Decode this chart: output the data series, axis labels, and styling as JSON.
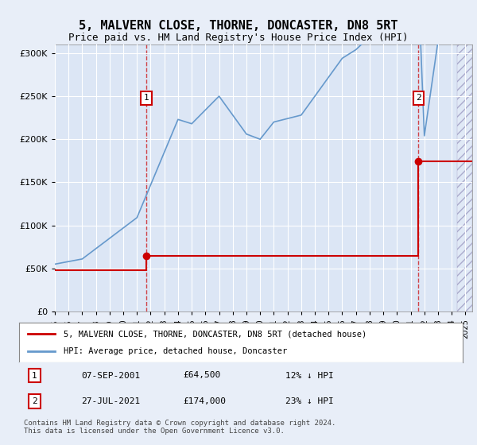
{
  "title": "5, MALVERN CLOSE, THORNE, DONCASTER, DN8 5RT",
  "subtitle": "Price paid vs. HM Land Registry's House Price Index (HPI)",
  "title_fontsize": 11,
  "subtitle_fontsize": 9,
  "bg_color": "#e8eef8",
  "plot_bg_color": "#dce6f5",
  "grid_color": "#ffffff",
  "hpi_color": "#6699cc",
  "price_color": "#cc0000",
  "marker_color": "#cc0000",
  "sale1_date_num": 2001.69,
  "sale1_price": 64500,
  "sale2_date_num": 2021.57,
  "sale2_price": 174000,
  "ylim_min": 0,
  "ylim_max": 310000,
  "yticks": [
    0,
    50000,
    100000,
    150000,
    200000,
    250000,
    300000
  ],
  "ytick_labels": [
    "£0",
    "£50K",
    "£100K",
    "£150K",
    "£200K",
    "£250K",
    "£300K"
  ],
  "xlim_min": 1995.0,
  "xlim_max": 2025.5,
  "xtick_years": [
    1995,
    1996,
    1997,
    1998,
    1999,
    2000,
    2001,
    2002,
    2003,
    2004,
    2005,
    2006,
    2007,
    2008,
    2009,
    2010,
    2011,
    2012,
    2013,
    2014,
    2015,
    2016,
    2017,
    2018,
    2019,
    2020,
    2021,
    2022,
    2023,
    2024,
    2025
  ],
  "legend_label_red": "5, MALVERN CLOSE, THORNE, DONCASTER, DN8 5RT (detached house)",
  "legend_label_blue": "HPI: Average price, detached house, Doncaster",
  "table_row1": [
    "1",
    "07-SEP-2001",
    "£64,500",
    "12% ↓ HPI"
  ],
  "table_row2": [
    "2",
    "27-JUL-2021",
    "£174,000",
    "23% ↓ HPI"
  ],
  "footer": "Contains HM Land Registry data © Crown copyright and database right 2024.\nThis data is licensed under the Open Government Licence v3.0.",
  "hpi_projected_start": 2024.42,
  "sale_points_x": [
    2001.69,
    2021.57
  ],
  "sale_points_y": [
    64500,
    174000
  ],
  "red_x": [
    1995.0,
    2001.69,
    2001.69,
    2021.57,
    2021.57,
    2025.5
  ],
  "red_y": [
    48000,
    48000,
    64500,
    64500,
    174000,
    174000
  ]
}
